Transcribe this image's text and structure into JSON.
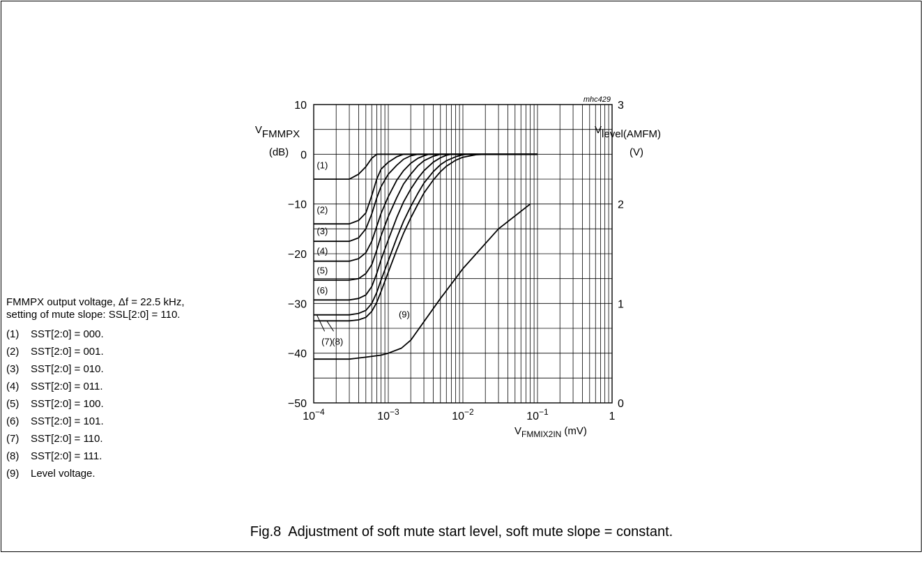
{
  "figure": {
    "number": "Fig.8",
    "caption": "Adjustment of soft mute start level, soft mute slope = constant."
  },
  "notes": {
    "intro_line1": "FMMPX output voltage, Δf = 22.5 kHz,",
    "intro_line2": "setting of mute slope: SSL[2:0] = 110.",
    "items": [
      {
        "num": "(1)",
        "text": "SST[2:0] = 000."
      },
      {
        "num": "(2)",
        "text": "SST[2:0] = 001."
      },
      {
        "num": "(3)",
        "text": "SST[2:0] = 010."
      },
      {
        "num": "(4)",
        "text": "SST[2:0] = 011."
      },
      {
        "num": "(5)",
        "text": "SST[2:0] = 100."
      },
      {
        "num": "(6)",
        "text": "SST[2:0] = 101."
      },
      {
        "num": "(7)",
        "text": "SST[2:0] = 110."
      },
      {
        "num": "(8)",
        "text": "SST[2:0] = 111."
      },
      {
        "num": "(9)",
        "text": "Level voltage."
      }
    ]
  },
  "chart_data": {
    "type": "line",
    "code": "mhc429",
    "xscale": "log",
    "xlim": [
      0.0001,
      1
    ],
    "x_ticks": [
      {
        "mant": "10",
        "exp": "−4"
      },
      {
        "mant": "10",
        "exp": "−3"
      },
      {
        "mant": "10",
        "exp": "−2"
      },
      {
        "mant": "10",
        "exp": "−1"
      },
      {
        "mant": "1",
        "exp": ""
      }
    ],
    "xlabel": {
      "main": "V",
      "sub": "FMMIX2IN",
      "unit": "(mV)"
    },
    "ylim": [
      -50,
      10
    ],
    "y_ticks": [
      "10",
      "0",
      "−10",
      "−20",
      "−30",
      "−40",
      "−50"
    ],
    "ylabel": {
      "main": "V",
      "sub": "FMMPX",
      "unit": "(dB)"
    },
    "y2lim": [
      0,
      3
    ],
    "y2_ticks": [
      "3",
      "2",
      "1",
      "0"
    ],
    "y2label": {
      "main": "V",
      "sub": "level(AMFM)",
      "unit": "(V)"
    },
    "grid": true,
    "series": [
      {
        "name": "(1)",
        "points": [
          [
            0.0001,
            -5
          ],
          [
            0.0003,
            -5
          ],
          [
            0.0004,
            -4
          ],
          [
            0.0005,
            -2.5
          ],
          [
            0.0006,
            -0.8
          ],
          [
            0.0007,
            0
          ],
          [
            0.001,
            0
          ],
          [
            0.1,
            0
          ]
        ]
      },
      {
        "name": "(2)",
        "points": [
          [
            0.0001,
            -14
          ],
          [
            0.0003,
            -14
          ],
          [
            0.0004,
            -13.3
          ],
          [
            0.0005,
            -11.8
          ],
          [
            0.0006,
            -8.3
          ],
          [
            0.0007,
            -5
          ],
          [
            0.0008,
            -3
          ],
          [
            0.001,
            -1.6
          ],
          [
            0.0013,
            -0.5
          ],
          [
            0.0016,
            0
          ],
          [
            0.1,
            0
          ]
        ]
      },
      {
        "name": "(3)",
        "points": [
          [
            0.0001,
            -17.5
          ],
          [
            0.0003,
            -17.5
          ],
          [
            0.0004,
            -16.8
          ],
          [
            0.0005,
            -15
          ],
          [
            0.0006,
            -12
          ],
          [
            0.0007,
            -8.8
          ],
          [
            0.0008,
            -6.5
          ],
          [
            0.001,
            -4
          ],
          [
            0.0013,
            -2.2
          ],
          [
            0.0016,
            -1
          ],
          [
            0.002,
            -0.3
          ],
          [
            0.0025,
            0
          ],
          [
            0.1,
            0
          ]
        ]
      },
      {
        "name": "(4)",
        "points": [
          [
            0.0001,
            -21.5
          ],
          [
            0.0003,
            -21.5
          ],
          [
            0.0004,
            -21
          ],
          [
            0.0005,
            -19.8
          ],
          [
            0.0006,
            -17.5
          ],
          [
            0.0007,
            -14.5
          ],
          [
            0.0008,
            -11.9
          ],
          [
            0.001,
            -8.5
          ],
          [
            0.0013,
            -5.2
          ],
          [
            0.0016,
            -3.3
          ],
          [
            0.002,
            -1.8
          ],
          [
            0.0025,
            -0.8
          ],
          [
            0.003,
            -0.3
          ],
          [
            0.0035,
            0
          ],
          [
            0.1,
            0
          ]
        ]
      },
      {
        "name": "(5)",
        "points": [
          [
            0.0001,
            -25.3
          ],
          [
            0.0003,
            -25.3
          ],
          [
            0.0004,
            -25
          ],
          [
            0.0005,
            -24
          ],
          [
            0.0006,
            -22.2
          ],
          [
            0.0007,
            -19.3
          ],
          [
            0.0008,
            -16.4
          ],
          [
            0.001,
            -12.5
          ],
          [
            0.0013,
            -8.7
          ],
          [
            0.0016,
            -6
          ],
          [
            0.002,
            -4
          ],
          [
            0.0025,
            -2.3
          ],
          [
            0.003,
            -1.3
          ],
          [
            0.004,
            -0.4
          ],
          [
            0.005,
            0
          ],
          [
            0.1,
            0
          ]
        ]
      },
      {
        "name": "(6)",
        "points": [
          [
            0.0001,
            -29.3
          ],
          [
            0.0003,
            -29.3
          ],
          [
            0.0004,
            -29
          ],
          [
            0.0005,
            -28.3
          ],
          [
            0.0006,
            -26.6
          ],
          [
            0.0007,
            -24
          ],
          [
            0.0008,
            -21.2
          ],
          [
            0.001,
            -17.2
          ],
          [
            0.0013,
            -12.7
          ],
          [
            0.0016,
            -9.6
          ],
          [
            0.002,
            -7
          ],
          [
            0.0025,
            -4.8
          ],
          [
            0.003,
            -3.3
          ],
          [
            0.004,
            -1.6
          ],
          [
            0.005,
            -0.7
          ],
          [
            0.006,
            -0.2
          ],
          [
            0.007,
            0
          ],
          [
            0.1,
            0
          ]
        ]
      },
      {
        "name": "(7)",
        "points": [
          [
            0.0001,
            -32.3
          ],
          [
            0.0003,
            -32.3
          ],
          [
            0.0004,
            -32
          ],
          [
            0.0005,
            -31.4
          ],
          [
            0.0006,
            -30
          ],
          [
            0.0007,
            -27.8
          ],
          [
            0.0008,
            -25.3
          ],
          [
            0.001,
            -21.4
          ],
          [
            0.0013,
            -16.8
          ],
          [
            0.0016,
            -13.5
          ],
          [
            0.002,
            -10.5
          ],
          [
            0.0025,
            -7.8
          ],
          [
            0.003,
            -5.8
          ],
          [
            0.004,
            -3.5
          ],
          [
            0.005,
            -2.1
          ],
          [
            0.006,
            -1.3
          ],
          [
            0.008,
            -0.5
          ],
          [
            0.01,
            -0.1
          ],
          [
            0.012,
            0
          ],
          [
            0.1,
            0
          ]
        ]
      },
      {
        "name": "(8)",
        "points": [
          [
            0.0001,
            -33.5
          ],
          [
            0.0003,
            -33.5
          ],
          [
            0.0004,
            -33.3
          ],
          [
            0.0005,
            -32.8
          ],
          [
            0.0006,
            -31.6
          ],
          [
            0.0007,
            -29.8
          ],
          [
            0.0008,
            -27.6
          ],
          [
            0.001,
            -23.7
          ],
          [
            0.0013,
            -19.2
          ],
          [
            0.0016,
            -15.9
          ],
          [
            0.002,
            -12.8
          ],
          [
            0.0025,
            -10
          ],
          [
            0.003,
            -7.8
          ],
          [
            0.004,
            -5.2
          ],
          [
            0.005,
            -3.5
          ],
          [
            0.006,
            -2.4
          ],
          [
            0.008,
            -1.2
          ],
          [
            0.01,
            -0.6
          ],
          [
            0.015,
            -0.1
          ],
          [
            0.02,
            0
          ],
          [
            0.1,
            0
          ]
        ]
      },
      {
        "name": "(9)",
        "axis": "y2",
        "points": [
          [
            0.0001,
            0.44
          ],
          [
            0.0003,
            0.44
          ],
          [
            0.0005,
            0.46
          ],
          [
            0.0008,
            0.48
          ],
          [
            0.001,
            0.5
          ],
          [
            0.0015,
            0.55
          ],
          [
            0.002,
            0.63
          ],
          [
            0.005,
            1.05
          ],
          [
            0.01,
            1.35
          ],
          [
            0.03,
            1.75
          ],
          [
            0.08,
            2.0
          ]
        ]
      }
    ],
    "curve_labels": [
      {
        "name": "(1)",
        "x": 0.00011,
        "y": -2.1
      },
      {
        "name": "(2)",
        "x": 0.00011,
        "y": -11.1
      },
      {
        "name": "(3)",
        "x": 0.00011,
        "y": -15.4
      },
      {
        "name": "(4)",
        "x": 0.00011,
        "y": -19.4
      },
      {
        "name": "(5)",
        "x": 0.00011,
        "y": -23.3
      },
      {
        "name": "(6)",
        "x": 0.00011,
        "y": -27.3
      },
      {
        "name": "(7)",
        "x": 0.000127,
        "y": -37.6
      },
      {
        "name": "(8)",
        "x": 0.000176,
        "y": -37.6
      },
      {
        "name": "(9)",
        "x": 0.00138,
        "y": -32.1
      }
    ]
  }
}
